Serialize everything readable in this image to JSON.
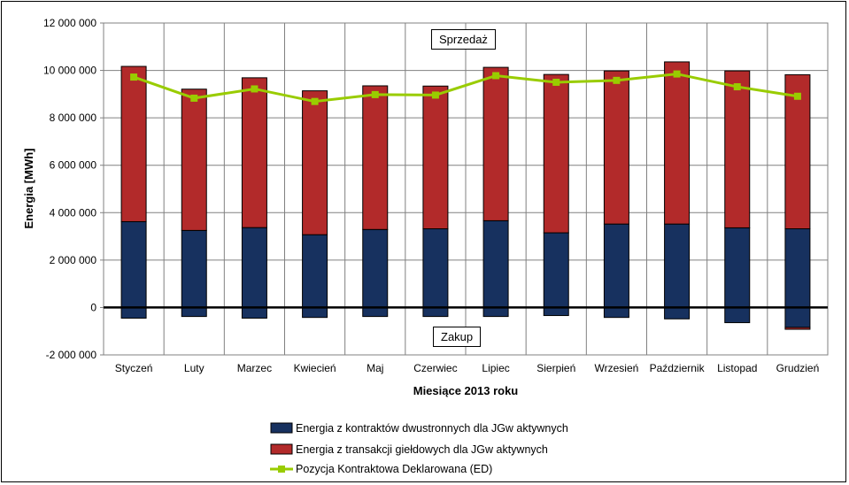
{
  "chart_data": {
    "type": "bar",
    "stacked": true,
    "title": "",
    "xlabel": "Miesiące 2013  roku",
    "ylabel": "Energia [MWh]",
    "ylim": [
      -2000000,
      12000000
    ],
    "yticks": [
      -2000000,
      0,
      2000000,
      4000000,
      6000000,
      8000000,
      10000000,
      12000000
    ],
    "ytick_labels": [
      "-2 000 000",
      "0",
      "2 000 000",
      "4 000 000",
      "6 000 000",
      "8 000 000",
      "10 000 000",
      "12 000 000"
    ],
    "grid": true,
    "legend_position": "bottom",
    "categories": [
      "Styczeń",
      "Luty",
      "Marzec",
      "Kwiecień",
      "Maj",
      "Czerwiec",
      "Lipiec",
      "Sierpień",
      "Wrzesień",
      "Październik",
      "Listopad",
      "Grudzień"
    ],
    "series": [
      {
        "name": "Energia z kontraktów dwustronnych dla JGw aktywnych",
        "type": "bar",
        "color": "#17315f",
        "values": [
          3620000,
          3250000,
          3370000,
          3070000,
          3290000,
          3320000,
          3660000,
          3150000,
          3520000,
          3520000,
          3360000,
          3320000
        ],
        "negative_values": [
          -450000,
          -380000,
          -450000,
          -420000,
          -380000,
          -380000,
          -380000,
          -340000,
          -420000,
          -480000,
          -640000,
          -840000
        ]
      },
      {
        "name": "Energia z transakcji giełdowych dla JGw aktywnych",
        "type": "bar",
        "color": "#b22a2a",
        "values": [
          6550000,
          5960000,
          6320000,
          6070000,
          6060000,
          6020000,
          6470000,
          6680000,
          6460000,
          6840000,
          6620000,
          6500000
        ],
        "negative_values": [
          0,
          0,
          0,
          0,
          0,
          0,
          0,
          0,
          0,
          0,
          0,
          -80000
        ]
      },
      {
        "name": "Pozycja Kontraktowa Deklarowana (ED)",
        "type": "line",
        "color": "#99cc00",
        "values": [
          9720000,
          8830000,
          9220000,
          8690000,
          8980000,
          8960000,
          9780000,
          9500000,
          9580000,
          9850000,
          9310000,
          8910000
        ]
      }
    ],
    "annotations": {
      "sell": "Sprzedaż",
      "buy": "Zakup"
    }
  }
}
